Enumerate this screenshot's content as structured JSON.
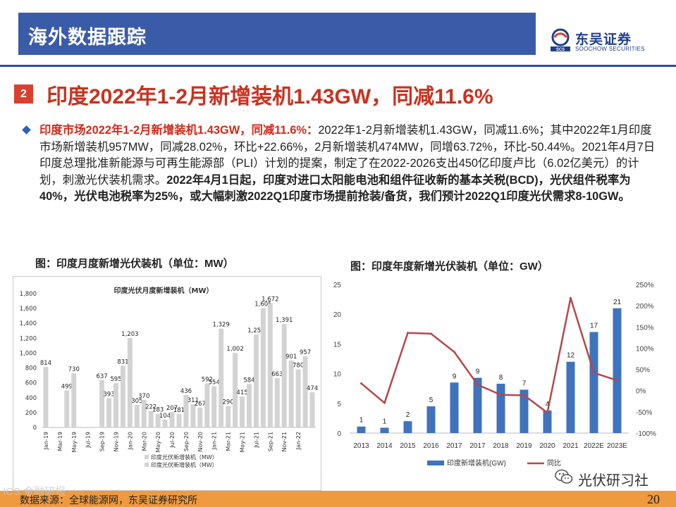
{
  "header": {
    "title": "海外数据跟踪"
  },
  "logo": {
    "cn": "东吴证券",
    "en": "SOOCHOW SECURITIES",
    "mark": "SCS"
  },
  "section": {
    "number": "2",
    "title": "印度2022年1-2月新增装机1.43GW，同减11.6%"
  },
  "bullet": {
    "lead": "印度市场2022年1-2月新增装机1.43GW，同减11.6%：",
    "body": "2022年1-2月新增装机1.43GW，同减11.6%；其中2022年1月印度市场新增装机957MW，同减28.02%，环比+22.66%，2月新增装机474MW，同增63.72%，环比-50.44%。2021年4月7日印度总理批准新能源与可再生能源部（PLI）计划的提案，制定了在2022-2026支出450亿印度卢比（6.02亿美元）的计划，刺激光伏装机需求。",
    "bold": "2022年4月1日起，印度对进口太阳能电池和组件征收新的基本关税(BCD)，光伏组件税率为40%，光伏电池税率为25%，或大幅刺激2022Q1印度市场提前抢装/备货，我们预计2022Q1印度光伏需求8-10GW。"
  },
  "captions": {
    "left": "图：印度月度新增光伏装机（单位：MW）",
    "right": "图：印度年度新增光伏装机（单位：GW）"
  },
  "footer": {
    "source": "数据来源：全球能源网，东吴证券研究所",
    "page": "20",
    "faded": "ICS 金融研报"
  },
  "watermark": {
    "text": "光伏研习社"
  },
  "colors": {
    "header": "#3a5ba8",
    "accent_red": "#c9321f",
    "bar_grey": "#d3d3d3",
    "bar_blue": "#3f73bd",
    "line_red": "#b5484a",
    "footer": "#ef9a3e"
  },
  "chart_data": [
    {
      "type": "bar",
      "title": "印度光伏月度新增装机（MW）",
      "ylim": [
        0,
        1800
      ],
      "yticks": [
        "0",
        "200",
        "400",
        "600",
        "800",
        "1,000",
        "1,200",
        "1,400",
        "1,600",
        "1,800"
      ],
      "tick_labels": [
        "Jan-19",
        "Mar-19",
        "May-19",
        "Jul-19",
        "Sep-19",
        "Nov-19",
        "Jan-20",
        "Mar-20",
        "May-20",
        "Jul-20",
        "Sep-20",
        "Nov-20",
        "Jan-21",
        "Mar-21",
        "May-21",
        "Jul-21",
        "Sep-21",
        "Nov-21",
        "Jan-22"
      ],
      "values": [
        814,
        null,
        null,
        499,
        730,
        null,
        null,
        null,
        637,
        393,
        595,
        831,
        1203,
        305,
        370,
        222,
        183,
        104,
        207,
        181,
        436,
        311,
        267,
        592,
        554,
        1329,
        290,
        1002,
        415,
        584,
        1250,
        1605,
        1672,
        663,
        1391,
        901,
        780,
        957,
        474
      ],
      "value_labels": [
        "814",
        "",
        "",
        "499",
        "730",
        "",
        "",
        "",
        "637",
        "393",
        "595",
        "831",
        "1,203",
        "305",
        "370",
        "222",
        "183",
        "104",
        "207",
        "181",
        "436",
        "311",
        "267",
        "592",
        "554",
        "1,329",
        "290",
        "1,002",
        "415",
        "584",
        "1,250",
        "1,605",
        "1,672",
        "663",
        "1,391",
        "901",
        "780",
        "957",
        "474"
      ],
      "legend": [
        "印度光伏新增装机（MW）",
        "印度光伏新增装机（MW）"
      ]
    },
    {
      "type": "bar+line",
      "categories": [
        "2013",
        "2014",
        "2015",
        "2016",
        "2017",
        "2017",
        "2018",
        "2019",
        "2020",
        "2021",
        "2022E",
        "2023E"
      ],
      "series": [
        {
          "name": "印度新增装机(GW)",
          "type": "bar",
          "axis": "left",
          "values": [
            1.1,
            0.9,
            2,
            4.5,
            8.5,
            9.3,
            8.3,
            7.3,
            3.8,
            12,
            17,
            21
          ],
          "labels": [
            "1",
            "1",
            "2",
            "5",
            "9",
            "9",
            "8",
            "7",
            "4",
            "12",
            "17",
            "21"
          ]
        },
        {
          "name": "同比",
          "type": "line",
          "axis": "right",
          "values": [
            17,
            -29,
            136,
            134,
            91,
            14,
            -10,
            -11,
            -52,
            218,
            42,
            24
          ]
        }
      ],
      "ylim_left": [
        0,
        25
      ],
      "yticks_left": [
        "0",
        "5",
        "10",
        "15",
        "20",
        "25"
      ],
      "ylim_right": [
        -100,
        250
      ],
      "yticks_right": [
        "-100%",
        "-50%",
        "0%",
        "50%",
        "100%",
        "150%",
        "200%",
        "250%"
      ]
    }
  ]
}
